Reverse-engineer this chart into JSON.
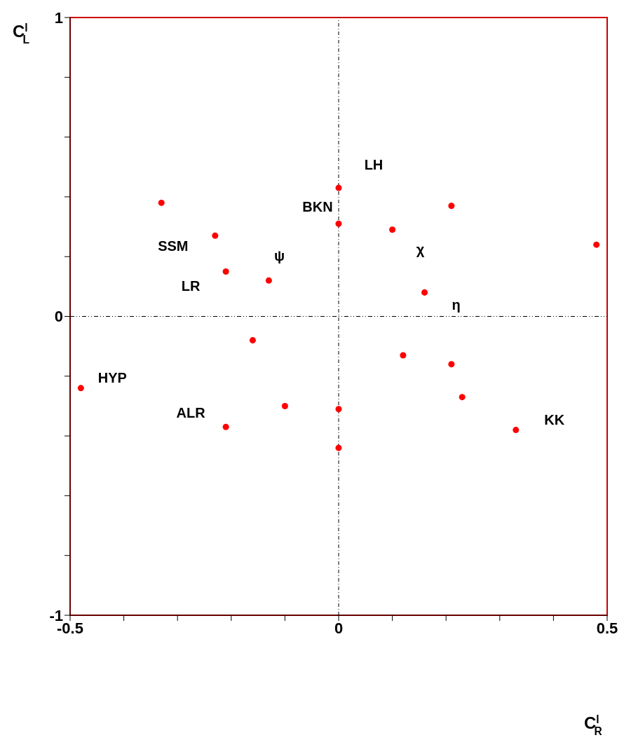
{
  "chart_data": {
    "type": "scatter",
    "xlabel": "C$^{l}$$_{R}$",
    "ylabel": "C$^{l}$$_{L}$",
    "x": [
      0,
      0,
      0.1,
      0.21,
      0.48,
      -0.33,
      -0.23,
      -0.21,
      -0.13,
      0.16,
      -0.16,
      0.12,
      0.21,
      -0.48,
      0.23,
      -0.1,
      0,
      -0.21,
      0.33,
      0
    ],
    "values": [
      0.43,
      0.31,
      0.29,
      0.37,
      0.24,
      0.38,
      0.27,
      0.15,
      0.12,
      0.08,
      -0.08,
      -0.13,
      -0.16,
      -0.24,
      -0.27,
      -0.3,
      -0.31,
      -0.37,
      -0.38,
      -0.44
    ],
    "color": "#ff0000",
    "marker": "circle",
    "xlim": [
      -0.5,
      0.5
    ],
    "ylim": [
      -1,
      1
    ],
    "xticks": [
      -0.5,
      {
        "value": -0.4,
        "label": null
      },
      {
        "value": -0.3,
        "label": null
      },
      {
        "value": -0.2,
        "label": null
      },
      {
        "value": -0.1,
        "label": null
      },
      0,
      {
        "value": 0.1,
        "label": null
      },
      {
        "value": 0.2,
        "label": null
      },
      {
        "value": 0.3,
        "label": null
      },
      {
        "value": 0.4,
        "label": null
      },
      0.5
    ],
    "yticks": [
      -1,
      {
        "value": -0.8,
        "label": null
      },
      {
        "value": -0.6,
        "label": null
      },
      {
        "value": -0.4,
        "label": null
      },
      {
        "value": -0.2,
        "label": null
      },
      0,
      {
        "value": 0.2,
        "label": null
      },
      {
        "value": 0.4,
        "label": null
      },
      {
        "value": 0.6,
        "label": null
      },
      {
        "value": 0.8,
        "label": null
      },
      1
    ],
    "ref_lines": [
      {
        "axis": "x",
        "value": 0,
        "line_style": "dashed"
      },
      {
        "axis": "y",
        "value": 0,
        "line_style": "dotted"
      }
    ],
    "annotations": [
      {
        "text": "LH",
        "x": 0,
        "y": 0.43
      },
      {
        "text": "BKN",
        "x": 0,
        "y": 0.31
      },
      {
        "text": "χ",
        "x": 0.1,
        "y": 0.29
      },
      {
        "text": "SSM",
        "x": -0.23,
        "y": 0.27
      },
      {
        "text": "LR",
        "x": -0.21,
        "y": 0.15
      },
      {
        "text": "ψ",
        "x": -0.13,
        "y": 0.12
      },
      {
        "text": "η",
        "x": 0.16,
        "y": 0.08
      },
      {
        "text": "HYP",
        "x": -0.48,
        "y": -0.24
      },
      {
        "text": "ALR",
        "x": -0.21,
        "y": -0.37
      },
      {
        "text": "KK",
        "x": 0.33,
        "y": -0.38
      }
    ],
    "grid": false,
    "legend": false
  }
}
